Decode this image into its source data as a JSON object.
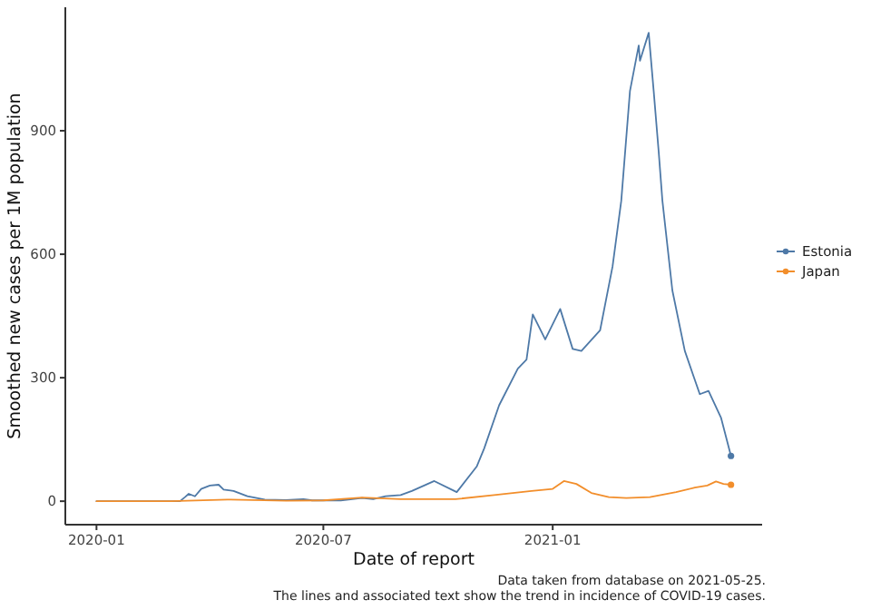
{
  "chart_data": {
    "type": "line",
    "xlabel": "Date of report",
    "ylabel": "Smoothed new cases per 1M population",
    "xlim": [
      "2019-12-07",
      "2021-06-18"
    ],
    "ylim": [
      -57,
      1200
    ],
    "xticks": [
      {
        "value": "2020-01-01",
        "label": "2020-01"
      },
      {
        "value": "2020-07-01",
        "label": "2020-07"
      },
      {
        "value": "2021-01-01",
        "label": "2021-01"
      }
    ],
    "yticks": [
      0,
      300,
      600,
      900
    ],
    "legend": "right",
    "grid": false,
    "annotations": [
      "Data taken from database on 2021-05-25.",
      "The lines and associated text show the trend in incidence of COVID-19 cases."
    ],
    "series": [
      {
        "name": "Estonia",
        "color": "#4e79a7",
        "x": [
          "2020-01-01",
          "2020-03-08",
          "2020-03-12",
          "2020-03-15",
          "2020-03-20",
          "2020-03-25",
          "2020-04-01",
          "2020-04-08",
          "2020-04-12",
          "2020-04-20",
          "2020-05-01",
          "2020-05-15",
          "2020-06-01",
          "2020-06-15",
          "2020-06-22",
          "2020-07-15",
          "2020-08-01",
          "2020-08-10",
          "2020-08-20",
          "2020-09-01",
          "2020-09-10",
          "2020-09-28",
          "2020-10-16",
          "2020-11-01",
          "2020-11-07",
          "2020-11-19",
          "2020-12-04",
          "2020-12-11",
          "2020-12-16",
          "2020-12-26",
          "2021-01-07",
          "2021-01-17",
          "2021-01-24",
          "2021-02-08",
          "2021-02-18",
          "2021-02-25",
          "2021-03-04",
          "2021-03-11",
          "2021-03-12",
          "2021-03-19",
          "2021-03-23",
          "2021-03-27",
          "2021-03-30",
          "2021-04-07",
          "2021-04-17",
          "2021-04-29",
          "2021-05-06",
          "2021-05-16",
          "2021-05-24"
        ],
        "values": [
          0,
          0,
          10,
          18,
          12,
          30,
          38,
          40,
          28,
          25,
          12,
          4,
          3,
          5,
          2,
          2,
          8,
          5,
          12,
          15,
          25,
          49,
          22,
          84,
          128,
          233,
          322,
          344,
          454,
          393,
          467,
          370,
          365,
          415,
          570,
          730,
          997,
          1107,
          1070,
          1138,
          997,
          850,
          730,
          512,
          365,
          260,
          268,
          203,
          110
        ]
      },
      {
        "name": "Japan",
        "color": "#f28e2b",
        "x": [
          "2020-01-01",
          "2020-03-01",
          "2020-04-15",
          "2020-06-01",
          "2020-07-01",
          "2020-08-01",
          "2020-09-01",
          "2020-10-15",
          "2020-11-15",
          "2020-12-15",
          "2021-01-01",
          "2021-01-10",
          "2021-01-20",
          "2021-02-01",
          "2021-02-15",
          "2021-03-01",
          "2021-03-20",
          "2021-04-10",
          "2021-04-25",
          "2021-05-05",
          "2021-05-12",
          "2021-05-18",
          "2021-05-24"
        ],
        "values": [
          0,
          0,
          4,
          1,
          2,
          9,
          5,
          5,
          15,
          25,
          30,
          49,
          42,
          20,
          10,
          8,
          10,
          22,
          33,
          38,
          48,
          42,
          40
        ]
      }
    ]
  }
}
